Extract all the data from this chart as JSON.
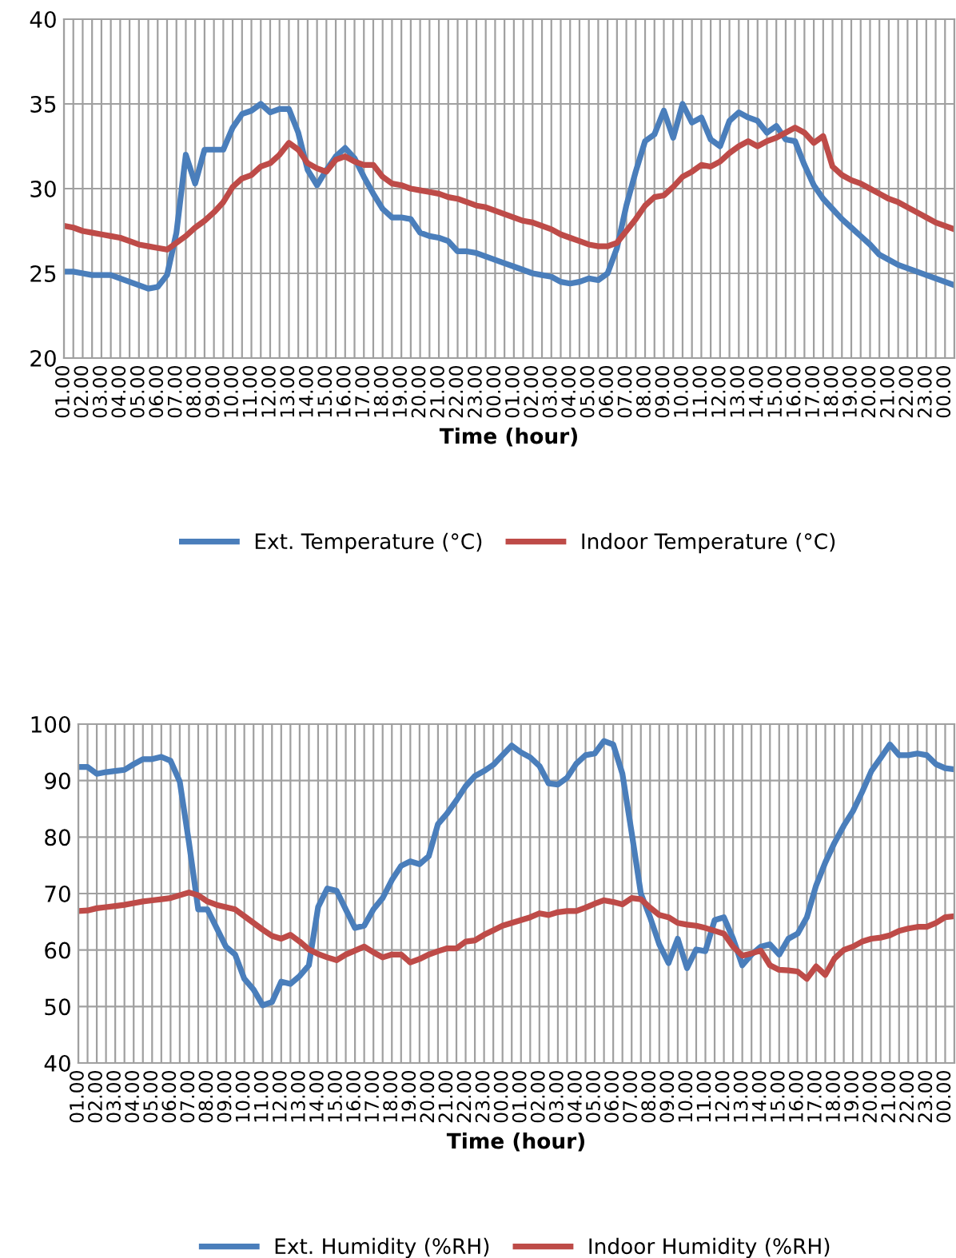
{
  "chart_data": [
    {
      "type": "line",
      "xlabel": "Time (hour)",
      "ylim": [
        20,
        40
      ],
      "yticks": [
        20,
        25,
        30,
        35,
        40
      ],
      "grid": true,
      "legend": "bottom",
      "categories": [
        "01.00",
        null,
        "02.00",
        null,
        "03.00",
        null,
        "04.00",
        null,
        "05.00",
        null,
        "06.00",
        null,
        "07.00",
        null,
        "08.00",
        null,
        "09.00",
        null,
        "10.00",
        null,
        "11.00",
        null,
        "12.00",
        null,
        "13.00",
        null,
        "14.00",
        null,
        "15.00",
        null,
        "16.00",
        null,
        "17.00",
        null,
        "18.00",
        null,
        "19.00",
        null,
        "20.00",
        null,
        "21.00",
        null,
        "22.00",
        null,
        "23.00",
        null,
        "00.00",
        null,
        "01.00",
        null,
        "02.00",
        null,
        "03.00",
        null,
        "04.00",
        null,
        "05.00",
        null,
        "06.00",
        null,
        "07.00",
        null,
        "08.00",
        null,
        "09.00",
        null,
        "10.00",
        null,
        "11.00",
        null,
        "12.00",
        null,
        "13.00",
        null,
        "14.00",
        null,
        "15.00",
        null,
        "16.00",
        null,
        "17.00",
        null,
        "18.00",
        null,
        "19.00",
        null,
        "20.00",
        null,
        "21.00",
        null,
        "22.00",
        null,
        "23.00",
        null,
        "00.00",
        null
      ],
      "series": [
        {
          "name": "Ext. Temperature (°C)",
          "color": "#4a7ebb",
          "values": [
            25.1,
            25.1,
            25.0,
            24.9,
            24.9,
            24.9,
            24.7,
            24.5,
            24.3,
            24.1,
            24.2,
            24.9,
            27.4,
            32.0,
            30.3,
            32.3,
            32.3,
            32.3,
            33.6,
            34.4,
            34.6,
            35.0,
            34.5,
            34.7,
            34.7,
            33.3,
            31.1,
            30.2,
            31.1,
            31.9,
            32.4,
            31.8,
            30.7,
            29.7,
            28.8,
            28.3,
            28.3,
            28.2,
            27.4,
            27.2,
            27.1,
            26.9,
            26.3,
            26.3,
            26.2,
            26.0,
            25.8,
            25.6,
            25.4,
            25.2,
            25.0,
            24.9,
            24.8,
            24.5,
            24.4,
            24.5,
            24.7,
            24.6,
            25.0,
            26.5,
            29.0,
            31.0,
            32.8,
            33.2,
            34.6,
            33.0,
            35.0,
            33.9,
            34.2,
            32.9,
            32.5,
            34.0,
            34.5,
            34.2,
            34.0,
            33.3,
            33.7,
            32.9,
            32.8,
            31.4,
            30.2,
            29.4,
            28.8,
            28.2,
            27.7,
            27.2,
            26.7,
            26.1,
            25.8,
            25.5,
            25.3,
            25.1,
            24.9,
            24.7,
            24.5,
            24.3
          ]
        },
        {
          "name": "Indoor Temperature (°C)",
          "color": "#be4b48",
          "values": [
            27.8,
            27.7,
            27.5,
            27.4,
            27.3,
            27.2,
            27.1,
            26.9,
            26.7,
            26.6,
            26.5,
            26.4,
            26.8,
            27.2,
            27.7,
            28.1,
            28.6,
            29.2,
            30.1,
            30.6,
            30.8,
            31.3,
            31.5,
            32.0,
            32.7,
            32.3,
            31.5,
            31.2,
            31.0,
            31.7,
            31.9,
            31.6,
            31.4,
            31.4,
            30.7,
            30.3,
            30.2,
            30.0,
            29.9,
            29.8,
            29.7,
            29.5,
            29.4,
            29.2,
            29.0,
            28.9,
            28.7,
            28.5,
            28.3,
            28.1,
            28.0,
            27.8,
            27.6,
            27.3,
            27.1,
            26.9,
            26.7,
            26.6,
            26.6,
            26.8,
            27.5,
            28.2,
            29.0,
            29.5,
            29.6,
            30.1,
            30.7,
            31.0,
            31.4,
            31.3,
            31.6,
            32.1,
            32.5,
            32.8,
            32.5,
            32.8,
            33.0,
            33.3,
            33.6,
            33.3,
            32.7,
            33.1,
            31.3,
            30.8,
            30.5,
            30.3,
            30.0,
            29.7,
            29.4,
            29.2,
            28.9,
            28.6,
            28.3,
            28.0,
            27.8,
            27.6
          ]
        }
      ]
    },
    {
      "type": "line",
      "xlabel": "Time (hour)",
      "ylim": [
        40,
        100
      ],
      "yticks": [
        40,
        50,
        60,
        70,
        80,
        90,
        100
      ],
      "grid": true,
      "legend": "bottom",
      "categories": [
        "01.00",
        null,
        "02.00",
        null,
        "03.00",
        null,
        "04.00",
        null,
        "05.00",
        null,
        "06.00",
        null,
        "07.00",
        null,
        "08.00",
        null,
        "09.00",
        null,
        "10.00",
        null,
        "11.00",
        null,
        "12.00",
        null,
        "13.00",
        null,
        "14.00",
        null,
        "15.00",
        null,
        "16.00",
        null,
        "17.00",
        null,
        "18.00",
        null,
        "19.00",
        null,
        "20.00",
        null,
        "21.00",
        null,
        "22.00",
        null,
        "23.00",
        null,
        "00.00",
        null,
        "01.00",
        null,
        "02.00",
        null,
        "03.00",
        null,
        "04.00",
        null,
        "05.00",
        null,
        "06.00",
        null,
        "07.00",
        null,
        "08.00",
        null,
        "09.00",
        null,
        "10.00",
        null,
        "11.00",
        null,
        "12.00",
        null,
        "13.00",
        null,
        "14.00",
        null,
        "15.00",
        null,
        "16.00",
        null,
        "17.00",
        null,
        "18.00",
        null,
        "19.00",
        null,
        "20.00",
        null,
        "21.00",
        null,
        "22.00",
        null,
        "23.00",
        null,
        "00.00",
        null
      ],
      "series": [
        {
          "name": "Ext. Humidity (%RH)",
          "color": "#4a7ebb",
          "values": [
            92.4,
            92.4,
            91.2,
            91.5,
            91.7,
            91.9,
            92.9,
            93.8,
            93.8,
            94.2,
            93.5,
            89.8,
            79.0,
            67.2,
            67.2,
            63.9,
            60.6,
            59.2,
            54.9,
            53.0,
            50.2,
            50.8,
            54.4,
            54.0,
            55.4,
            57.3,
            67.6,
            70.9,
            70.5,
            67.2,
            63.9,
            64.3,
            67.2,
            69.2,
            72.4,
            74.9,
            75.7,
            75.2,
            76.6,
            82.3,
            84.2,
            86.5,
            89.0,
            90.8,
            91.7,
            92.8,
            94.5,
            96.2,
            95.0,
            94.1,
            92.6,
            89.5,
            89.3,
            90.5,
            93.0,
            94.5,
            94.8,
            97.0,
            96.4,
            91.2,
            80.8,
            70.0,
            65.8,
            61.0,
            57.7,
            62.0,
            56.8,
            60.1,
            59.8,
            65.3,
            65.8,
            62.0,
            57.3,
            59.2,
            60.6,
            61.0,
            59.2,
            62.0,
            62.9,
            65.8,
            71.4,
            75.5,
            79.0,
            82.0,
            84.6,
            88.0,
            91.7,
            94.0,
            96.4,
            94.5,
            94.5,
            94.8,
            94.5,
            92.9,
            92.2,
            92.0
          ]
        },
        {
          "name": "Indoor Humidity (%RH)",
          "color": "#be4b48",
          "values": [
            66.9,
            67.0,
            67.4,
            67.6,
            67.8,
            68.0,
            68.3,
            68.6,
            68.8,
            69.0,
            69.2,
            69.7,
            70.2,
            69.7,
            68.6,
            68.0,
            67.6,
            67.2,
            66.0,
            64.8,
            63.6,
            62.5,
            62.0,
            62.7,
            61.5,
            60.1,
            59.3,
            58.7,
            58.2,
            59.2,
            59.9,
            60.6,
            59.6,
            58.7,
            59.2,
            59.2,
            57.8,
            58.4,
            59.2,
            59.8,
            60.3,
            60.3,
            61.5,
            61.7,
            62.7,
            63.5,
            64.3,
            64.8,
            65.3,
            65.8,
            66.5,
            66.2,
            66.7,
            66.9,
            66.9,
            67.5,
            68.2,
            68.8,
            68.5,
            68.1,
            69.2,
            69.0,
            67.5,
            66.2,
            65.8,
            64.8,
            64.5,
            64.3,
            63.9,
            63.4,
            62.9,
            60.6,
            59.0,
            59.4,
            59.9,
            57.3,
            56.5,
            56.4,
            56.2,
            54.9,
            57.1,
            55.6,
            58.5,
            60.0,
            60.6,
            61.5,
            62.0,
            62.2,
            62.6,
            63.4,
            63.8,
            64.1,
            64.1,
            64.8,
            65.8,
            66.0
          ]
        }
      ]
    }
  ]
}
